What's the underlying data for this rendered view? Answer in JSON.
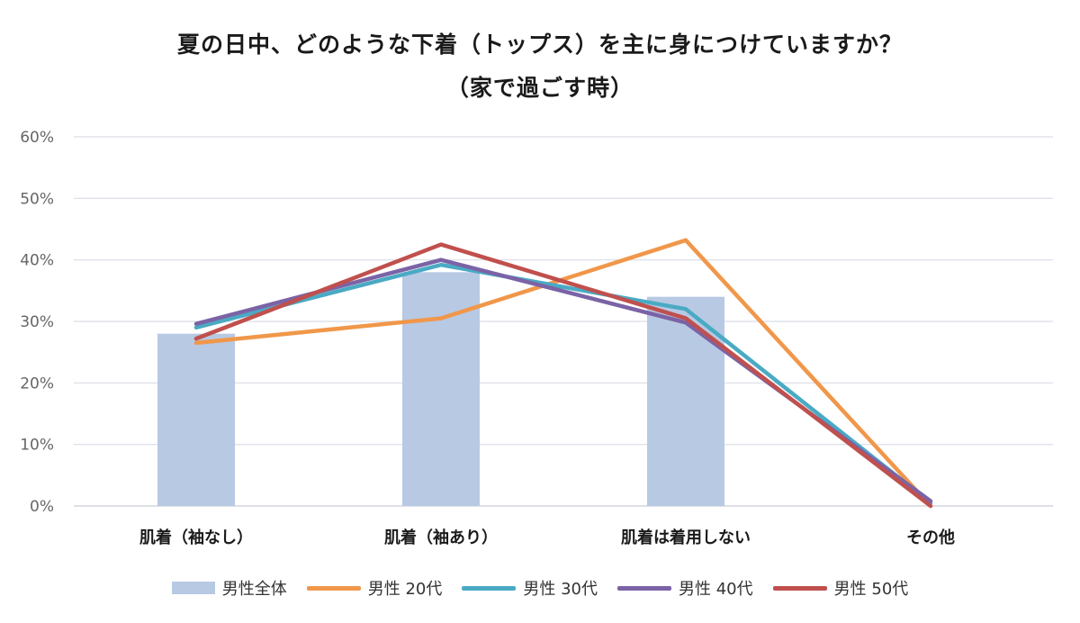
{
  "title_line1": "夏の日中、どのような下着（トップス）を主に身につけていますか？",
  "title_line2": "（家で過ごす時）",
  "chart_data": {
    "type": "bar",
    "categories": [
      "肌着（袖なし）",
      "肌着（袖あり）",
      "肌着は着用しない",
      "その他"
    ],
    "ylim": [
      0,
      60
    ],
    "yticks": [
      "0%",
      "10%",
      "20%",
      "30%",
      "40%",
      "50%",
      "60%"
    ],
    "grid": true,
    "legend_position": "bottom",
    "bar_series": {
      "name": "男性全体",
      "color": "#b8c9e4",
      "values": [
        28.0,
        38.0,
        34.0,
        0.0
      ]
    },
    "line_series": [
      {
        "name": "男性 20代",
        "color": "#f0974a",
        "values": [
          26.5,
          30.5,
          43.2,
          0.0
        ]
      },
      {
        "name": "男性 30代",
        "color": "#4aaac4",
        "values": [
          29.0,
          39.2,
          32.0,
          0.5
        ]
      },
      {
        "name": "男性 40代",
        "color": "#7b63a6",
        "values": [
          29.6,
          40.0,
          29.8,
          0.8
        ]
      },
      {
        "name": "男性 50代",
        "color": "#c0504d",
        "values": [
          27.2,
          42.5,
          30.5,
          0.0
        ]
      }
    ]
  }
}
